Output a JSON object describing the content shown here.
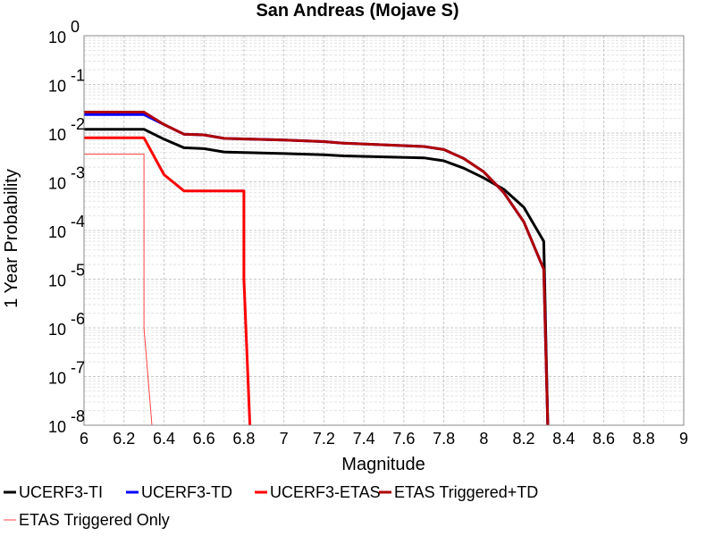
{
  "chart_data": {
    "type": "line",
    "title": "San Andreas (Mojave S)",
    "xlabel": "Magnitude",
    "ylabel": "1 Year Probability",
    "xlim": [
      6,
      9
    ],
    "ylim": [
      1e-08,
      1
    ],
    "yscale": "log",
    "grid": true,
    "legend_position": "bottom",
    "x_ticks": [
      6,
      6.2,
      6.4,
      6.6,
      6.8,
      7,
      7.2,
      7.4,
      7.6,
      7.8,
      8,
      8.2,
      8.4,
      8.6,
      8.8,
      9
    ],
    "x_tick_labels": [
      "6",
      "6.2",
      "6.4",
      "6.6",
      "6.8",
      "7",
      "7.2",
      "7.4",
      "7.6",
      "7.8",
      "8",
      "8.2",
      "8.4",
      "8.6",
      "8.8",
      "9"
    ],
    "y_tick_exponents": [
      "0",
      "-1",
      "-2",
      "-3",
      "-4",
      "-5",
      "-6",
      "-7",
      "-8"
    ],
    "series": [
      {
        "name": "UCERF3-TI",
        "color": "#000000",
        "x": [
          6.0,
          6.3,
          6.4,
          6.5,
          6.6,
          6.7,
          7.0,
          7.2,
          7.3,
          7.7,
          7.8,
          7.9,
          8.0,
          8.1,
          8.2,
          8.3,
          8.32
        ],
        "y": [
          0.012,
          0.012,
          0.0075,
          0.005,
          0.0048,
          0.0041,
          0.0038,
          0.0036,
          0.0034,
          0.0031,
          0.0027,
          0.0019,
          0.0012,
          0.0007,
          0.0003,
          6e-05,
          1e-08
        ]
      },
      {
        "name": "UCERF3-TD",
        "color": "#0000ff",
        "x": [
          6.0,
          6.3,
          6.4,
          6.5,
          6.6,
          6.7,
          7.0,
          7.2,
          7.3,
          7.7,
          7.8,
          7.9,
          8.0,
          8.1,
          8.2,
          8.3,
          8.32
        ],
        "y": [
          0.024,
          0.024,
          0.015,
          0.0095,
          0.0092,
          0.0078,
          0.0072,
          0.0067,
          0.0062,
          0.0053,
          0.0046,
          0.003,
          0.0016,
          0.0006,
          0.00015,
          1.6e-05,
          1e-08
        ]
      },
      {
        "name": "UCERF3-ETAS",
        "color": "#ff0000",
        "x": [
          6.0,
          6.3,
          6.4,
          6.5,
          6.8,
          6.8,
          6.83
        ],
        "y": [
          0.008,
          0.008,
          0.0014,
          0.00065,
          0.00065,
          1e-05,
          1e-08
        ]
      },
      {
        "name": "ETAS Triggered+TD",
        "color": "#b00000",
        "x": [
          6.0,
          6.3,
          6.4,
          6.5,
          6.6,
          6.7,
          7.0,
          7.2,
          7.3,
          7.7,
          7.8,
          7.9,
          8.0,
          8.1,
          8.2,
          8.3,
          8.32
        ],
        "y": [
          0.027,
          0.027,
          0.015,
          0.0095,
          0.0092,
          0.0078,
          0.0072,
          0.0067,
          0.0062,
          0.0053,
          0.0046,
          0.003,
          0.0016,
          0.0006,
          0.00015,
          1.6e-05,
          1e-08
        ]
      },
      {
        "name": "ETAS Triggered Only",
        "color": "#ff4444",
        "x": [
          6.0,
          6.3,
          6.3,
          6.34
        ],
        "y": [
          0.0037,
          0.0037,
          1e-06,
          1e-08
        ]
      }
    ]
  }
}
